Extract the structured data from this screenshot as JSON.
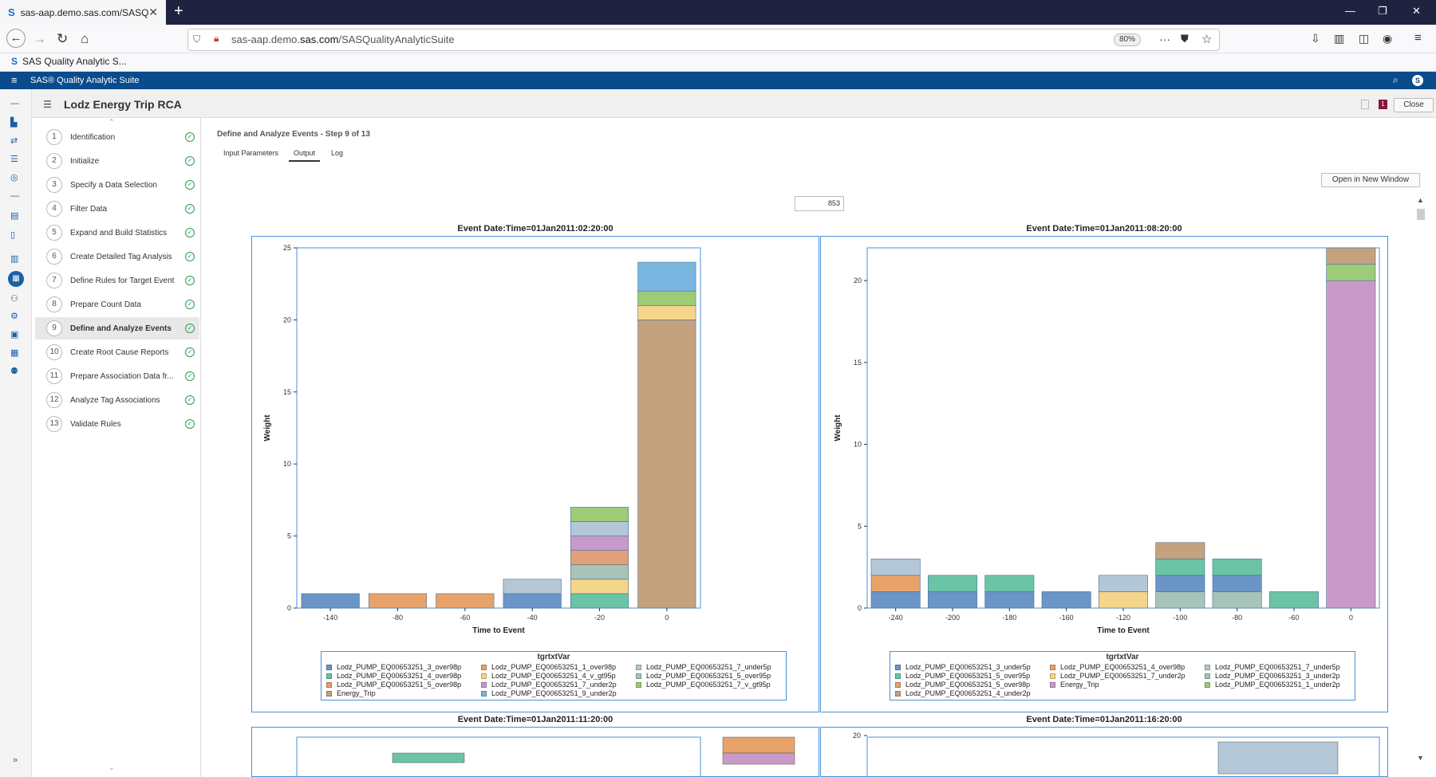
{
  "browser": {
    "tab_title": "sas-aap.demo.sas.com/SASQu",
    "url_prefix": "sas-aap.demo.",
    "url_domain": "sas.com",
    "url_path": "/SASQualityAnalyticSuite",
    "zoom": "80%",
    "bookmark": "SAS Quality Analytic S..."
  },
  "app": {
    "title": "SAS® Quality Analytic Suite",
    "user_initial": "S",
    "project_title": "Lodz Energy Trip RCA",
    "close_label": "Close",
    "badge_count": "1"
  },
  "steps": [
    {
      "num": "1",
      "label": "Identification"
    },
    {
      "num": "2",
      "label": "Initialize"
    },
    {
      "num": "3",
      "label": "Specify a Data Selection"
    },
    {
      "num": "4",
      "label": "Filter Data"
    },
    {
      "num": "5",
      "label": "Expand and Build Statistics"
    },
    {
      "num": "6",
      "label": "Create Detailed Tag Analysis"
    },
    {
      "num": "7",
      "label": "Define Rules for Target Event"
    },
    {
      "num": "8",
      "label": "Prepare Count Data"
    },
    {
      "num": "9",
      "label": "Define and Analyze Events"
    },
    {
      "num": "10",
      "label": "Create Root Cause Reports"
    },
    {
      "num": "11",
      "label": "Prepare Association Data fr..."
    },
    {
      "num": "12",
      "label": "Analyze Tag Associations"
    },
    {
      "num": "13",
      "label": "Validate Rules"
    }
  ],
  "main": {
    "step_title": "Define and Analyze Events - Step 9 of 13",
    "tabs": [
      "Input Parameters",
      "Output",
      "Log"
    ],
    "open_window_label": "Open in New Window",
    "count_value": "853"
  },
  "colors": {
    "Lodz_PUMP_EQ00653251_3_over98p": "#6a95c6",
    "Lodz_PUMP_EQ00653251_1_over98p": "#e8a36a",
    "Lodz_PUMP_EQ00653251_7_under5p": "#b3c7d6",
    "Lodz_PUMP_EQ00653251_4_over98p": "#6bc4a6",
    "Lodz_PUMP_EQ00653251_4_v_gt95p": "#f5d58a",
    "Lodz_PUMP_EQ00653251_5_over95p": "#a8c4b8",
    "Lodz_PUMP_EQ00653251_5_over98p": "#e1a07a",
    "Lodz_PUMP_EQ00653251_7_under2p": "#c99ac9",
    "Lodz_PUMP_EQ00653251_7_v_gt95p": "#9ccc78",
    "Energy_Trip": "#c4a17f",
    "Lodz_PUMP_EQ00653251_9_under2p": "#7ab6df",
    "Lodz_PUMP_EQ00653251_3_under5p": "#6a95c6",
    "Lodz_PUMP_EQ00653251_5_over95p_b": "#6bc4a6",
    "Lodz_PUMP_EQ00653251_4_over98p_b": "#e8a36a",
    "Lodz_PUMP_EQ00653251_7_under2p_b": "#f5d58a",
    "Lodz_PUMP_EQ00653251_3_under2p": "#a8c4b8",
    "Energy_Trip_b": "#c99ac9",
    "Lodz_PUMP_EQ00653251_1_under2p": "#9ccc78",
    "Lodz_PUMP_EQ00653251_4_under2p": "#c4a17f"
  },
  "chart_data": [
    {
      "type": "bar",
      "stacked": true,
      "title": "Event Date:Time=01Jan2011:02:20:00",
      "xlabel": "Time to Event",
      "ylabel": "Weight",
      "ylim": [
        0,
        25
      ],
      "yticks": [
        0,
        5,
        10,
        15,
        20,
        25
      ],
      "categories": [
        "-140",
        "-80",
        "-60",
        "-40",
        "-20",
        "0"
      ],
      "legend_title": "tgrtxtVar",
      "legend": [
        {
          "name": "Lodz_PUMP_EQ00653251_3_over98p",
          "color": "#6a95c6"
        },
        {
          "name": "Lodz_PUMP_EQ00653251_1_over98p",
          "color": "#e8a36a"
        },
        {
          "name": "Lodz_PUMP_EQ00653251_7_under5p",
          "color": "#b3c7d6"
        },
        {
          "name": "Lodz_PUMP_EQ00653251_4_over98p",
          "color": "#6bc4a6"
        },
        {
          "name": "Lodz_PUMP_EQ00653251_4_v_gt95p",
          "color": "#f5d58a"
        },
        {
          "name": "Lodz_PUMP_EQ00653251_5_over95p",
          "color": "#a8c4b8"
        },
        {
          "name": "Lodz_PUMP_EQ00653251_5_over98p",
          "color": "#e1a07a"
        },
        {
          "name": "Lodz_PUMP_EQ00653251_7_under2p",
          "color": "#c99ac9"
        },
        {
          "name": "Lodz_PUMP_EQ00653251_7_v_gt95p",
          "color": "#9ccc78"
        },
        {
          "name": "Energy_Trip",
          "color": "#c4a17f"
        },
        {
          "name": "Lodz_PUMP_EQ00653251_9_under2p",
          "color": "#7ab6df"
        }
      ],
      "stacks": [
        [
          {
            "series": "Lodz_PUMP_EQ00653251_3_over98p",
            "value": 1
          }
        ],
        [
          {
            "series": "Lodz_PUMP_EQ00653251_1_over98p",
            "value": 1
          }
        ],
        [
          {
            "series": "Lodz_PUMP_EQ00653251_1_over98p",
            "value": 1
          }
        ],
        [
          {
            "series": "Lodz_PUMP_EQ00653251_3_over98p",
            "value": 1
          },
          {
            "series": "Lodz_PUMP_EQ00653251_7_under5p",
            "value": 1
          }
        ],
        [
          {
            "series": "Lodz_PUMP_EQ00653251_4_over98p",
            "value": 1
          },
          {
            "series": "Lodz_PUMP_EQ00653251_4_v_gt95p",
            "value": 1
          },
          {
            "series": "Lodz_PUMP_EQ00653251_5_over95p",
            "value": 1
          },
          {
            "series": "Lodz_PUMP_EQ00653251_5_over98p",
            "value": 1
          },
          {
            "series": "Lodz_PUMP_EQ00653251_7_under2p",
            "value": 1
          },
          {
            "series": "Lodz_PUMP_EQ00653251_7_under5p",
            "value": 1
          },
          {
            "series": "Lodz_PUMP_EQ00653251_7_v_gt95p",
            "value": 1
          }
        ],
        [
          {
            "series": "Energy_Trip",
            "value": 20
          },
          {
            "series": "Lodz_PUMP_EQ00653251_4_v_gt95p",
            "value": 1
          },
          {
            "series": "Lodz_PUMP_EQ00653251_7_v_gt95p",
            "value": 1
          },
          {
            "series": "Lodz_PUMP_EQ00653251_9_under2p",
            "value": 2
          }
        ]
      ]
    },
    {
      "type": "bar",
      "stacked": true,
      "title": "Event Date:Time=01Jan2011:08:20:00",
      "xlabel": "Time to Event",
      "ylabel": "Weight",
      "ylim": [
        0,
        22
      ],
      "yticks": [
        0,
        5,
        10,
        15,
        20
      ],
      "categories": [
        "-240",
        "-200",
        "-180",
        "-160",
        "-120",
        "-100",
        "-80",
        "-60",
        "0"
      ],
      "legend_title": "tgrtxtVar",
      "legend": [
        {
          "name": "Lodz_PUMP_EQ00653251_3_under5p",
          "color": "#6a95c6"
        },
        {
          "name": "Lodz_PUMP_EQ00653251_4_over98p",
          "color": "#e8a36a"
        },
        {
          "name": "Lodz_PUMP_EQ00653251_7_under5p",
          "color": "#b3c7d6"
        },
        {
          "name": "Lodz_PUMP_EQ00653251_5_over95p",
          "color": "#6bc4a6"
        },
        {
          "name": "Lodz_PUMP_EQ00653251_7_under2p",
          "color": "#f5d58a"
        },
        {
          "name": "Lodz_PUMP_EQ00653251_3_under2p",
          "color": "#a8c4b8"
        },
        {
          "name": "Lodz_PUMP_EQ00653251_5_over98p",
          "color": "#e1a07a"
        },
        {
          "name": "Energy_Trip",
          "color": "#c99ac9"
        },
        {
          "name": "Lodz_PUMP_EQ00653251_1_under2p",
          "color": "#9ccc78"
        },
        {
          "name": "Lodz_PUMP_EQ00653251_4_under2p",
          "color": "#c4a17f"
        }
      ],
      "stacks": [
        [
          {
            "series": "Lodz_PUMP_EQ00653251_3_under5p",
            "value": 1
          },
          {
            "series": "Lodz_PUMP_EQ00653251_4_over98p",
            "value": 1
          },
          {
            "series": "Lodz_PUMP_EQ00653251_7_under5p",
            "value": 1
          }
        ],
        [
          {
            "series": "Lodz_PUMP_EQ00653251_3_under5p",
            "value": 1
          },
          {
            "series": "Lodz_PUMP_EQ00653251_5_over95p",
            "value": 1
          }
        ],
        [
          {
            "series": "Lodz_PUMP_EQ00653251_3_under5p",
            "value": 1
          },
          {
            "series": "Lodz_PUMP_EQ00653251_5_over95p",
            "value": 1
          }
        ],
        [
          {
            "series": "Lodz_PUMP_EQ00653251_3_under5p",
            "value": 1
          }
        ],
        [
          {
            "series": "Lodz_PUMP_EQ00653251_7_under2p",
            "value": 1
          },
          {
            "series": "Lodz_PUMP_EQ00653251_7_under5p",
            "value": 1
          }
        ],
        [
          {
            "series": "Lodz_PUMP_EQ00653251_3_under2p",
            "value": 1
          },
          {
            "series": "Lodz_PUMP_EQ00653251_3_under5p",
            "value": 1
          },
          {
            "series": "Lodz_PUMP_EQ00653251_5_over95p",
            "value": 1
          },
          {
            "series": "Lodz_PUMP_EQ00653251_4_under2p",
            "value": 1
          }
        ],
        [
          {
            "series": "Lodz_PUMP_EQ00653251_3_under2p",
            "value": 1
          },
          {
            "series": "Lodz_PUMP_EQ00653251_3_under5p",
            "value": 1
          },
          {
            "series": "Lodz_PUMP_EQ00653251_5_over95p",
            "value": 1
          }
        ],
        [
          {
            "series": "Lodz_PUMP_EQ00653251_5_over95p",
            "value": 1
          }
        ],
        [
          {
            "series": "Energy_Trip",
            "value": 20
          },
          {
            "series": "Lodz_PUMP_EQ00653251_1_under2p",
            "value": 1
          },
          {
            "series": "Lodz_PUMP_EQ00653251_4_under2p",
            "value": 1
          }
        ]
      ]
    },
    {
      "type": "bar",
      "title": "Event Date:Time=01Jan2011:11:20:00"
    },
    {
      "type": "bar",
      "title": "Event Date:Time=01Jan2011:16:20:00",
      "yticks": [
        20
      ]
    }
  ]
}
